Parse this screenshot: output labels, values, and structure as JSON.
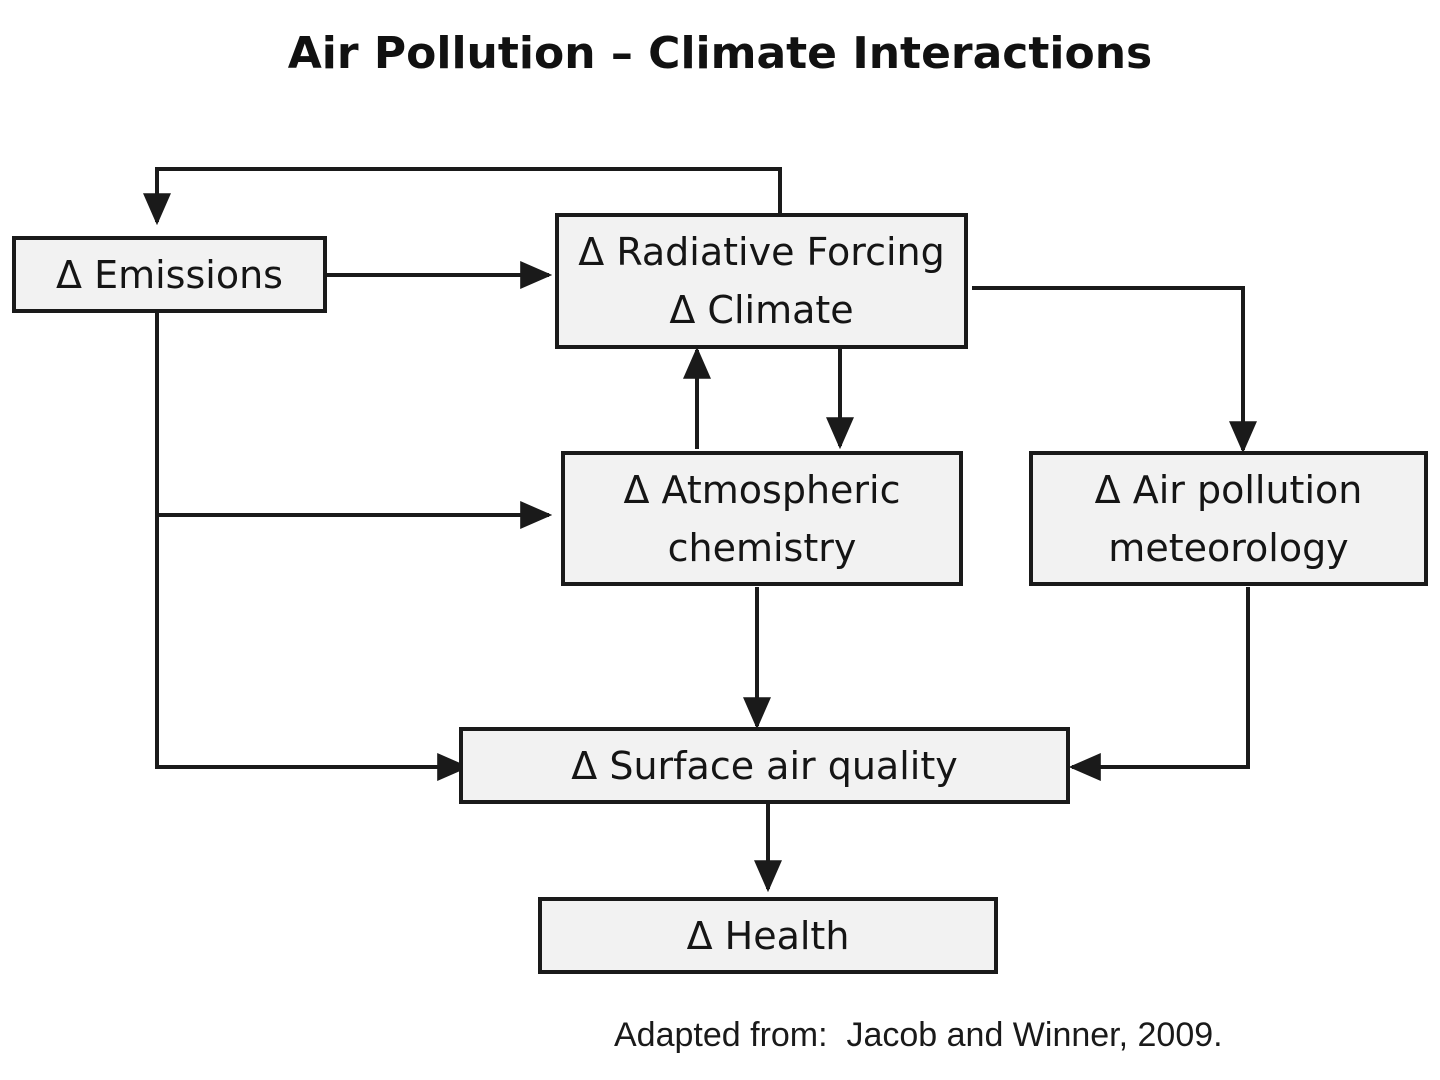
{
  "title": "Air Pollution – Climate Interactions",
  "nodes": {
    "emissions": {
      "lines": [
        "Δ Emissions"
      ]
    },
    "radiative": {
      "lines": [
        "Δ Radiative Forcing",
        "Δ Climate"
      ]
    },
    "chemistry": {
      "lines": [
        "Δ Atmospheric",
        "chemistry"
      ]
    },
    "meteorology": {
      "lines": [
        "Δ Air pollution",
        "meteorology"
      ]
    },
    "surface": {
      "lines": [
        "Δ Surface air quality"
      ]
    },
    "health": {
      "lines": [
        "Δ Health"
      ]
    }
  },
  "credit": "Adapted from:  Jacob and Winner, 2009.",
  "colors": {
    "box_fill": "#f2f2f2",
    "line": "#1a1a1a"
  }
}
